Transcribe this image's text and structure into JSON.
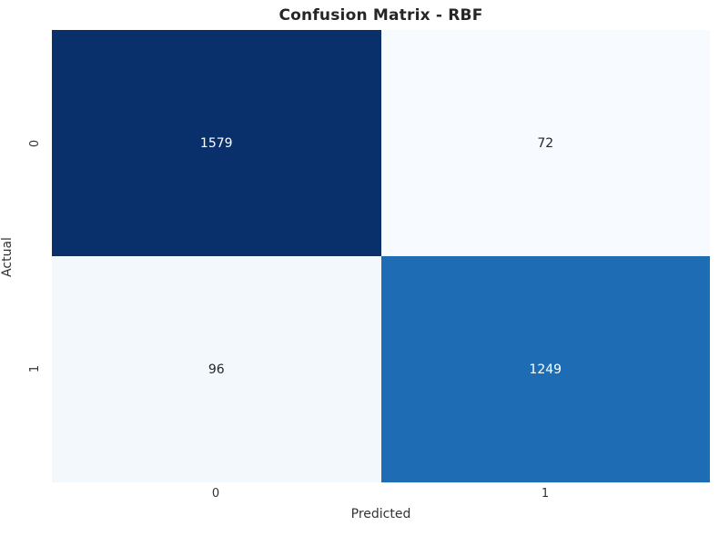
{
  "title": "Confusion Matrix - RBF",
  "chart_data": {
    "type": "heatmap",
    "title": "Confusion Matrix - RBF",
    "xlabel": "Predicted",
    "ylabel": "Actual",
    "x_tick_labels": [
      "0",
      "1"
    ],
    "y_tick_labels": [
      "0",
      "1"
    ],
    "colormap": "Blues",
    "colorbar": false,
    "value_range": [
      72,
      1579
    ],
    "rows": [
      [
        1579,
        72
      ],
      [
        96,
        1249
      ]
    ],
    "cells": [
      {
        "actual": "0",
        "predicted": "0",
        "value": "1579",
        "color": "#09306b",
        "text_color": "#ffffff"
      },
      {
        "actual": "0",
        "predicted": "1",
        "value": "72",
        "color": "#f7fbff",
        "text_color": "#262626"
      },
      {
        "actual": "1",
        "predicted": "0",
        "value": "96",
        "color": "#f3f8fd",
        "text_color": "#262626"
      },
      {
        "actual": "1",
        "predicted": "1",
        "value": "1249",
        "color": "#1e6cb3",
        "text_color": "#ffffff"
      }
    ]
  }
}
